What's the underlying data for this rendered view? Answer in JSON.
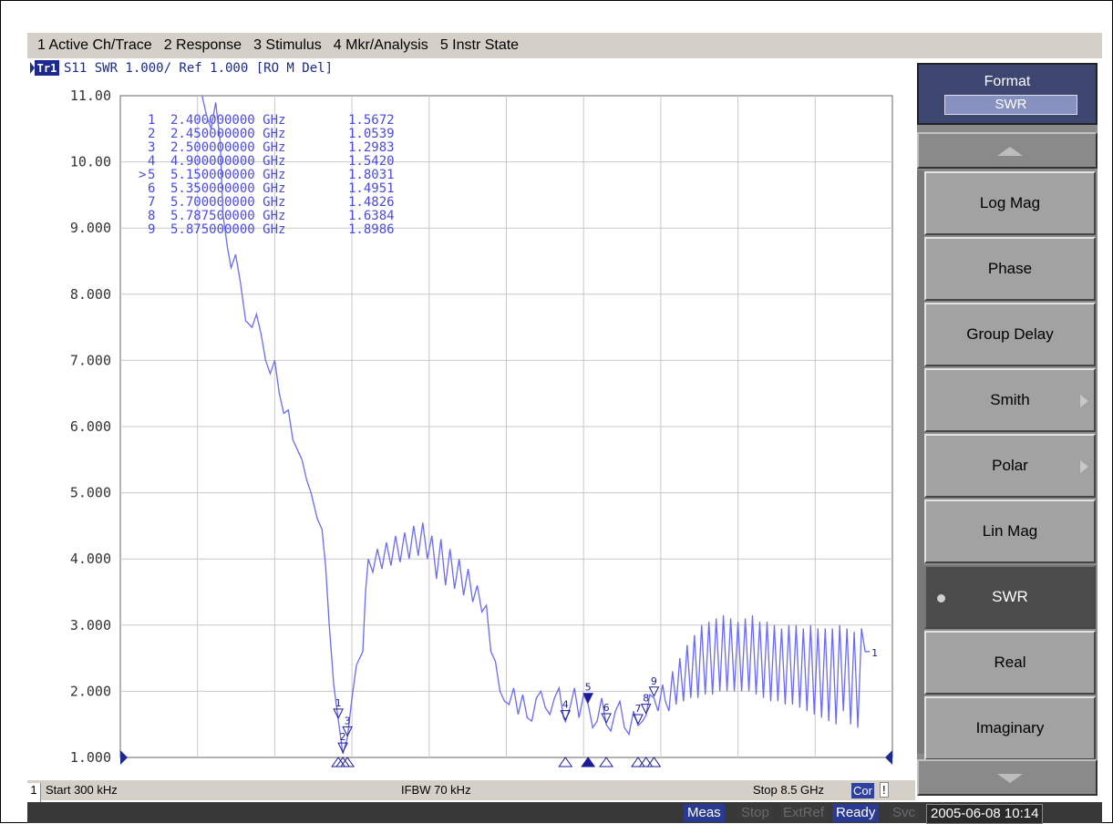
{
  "menu": [
    "1 Active Ch/Trace",
    "2 Response",
    "3 Stimulus",
    "4 Mkr/Analysis",
    "5 Instr State"
  ],
  "trace_header": {
    "badge": "Tr1",
    "text": "S11  SWR 1.000/ Ref 1.000  [RO M Del]"
  },
  "softkeys": {
    "title": "Format",
    "current": "SWR",
    "items": [
      {
        "label": "Log Mag",
        "arrow": false,
        "selected": false
      },
      {
        "label": "Phase",
        "arrow": false,
        "selected": false
      },
      {
        "label": "Group Delay",
        "arrow": false,
        "selected": false
      },
      {
        "label": "Smith",
        "arrow": true,
        "selected": false
      },
      {
        "label": "Polar",
        "arrow": true,
        "selected": false
      },
      {
        "label": "Lin Mag",
        "arrow": false,
        "selected": false
      },
      {
        "label": "SWR",
        "arrow": false,
        "selected": true
      },
      {
        "label": "Real",
        "arrow": false,
        "selected": false
      },
      {
        "label": "Imaginary",
        "arrow": false,
        "selected": false
      }
    ]
  },
  "status": {
    "channel": "1",
    "start": "Start 300 kHz",
    "ifbw": "IFBW 70 kHz",
    "stop": "Stop 8.5 GHz",
    "cor": "Cor",
    "excl": "!"
  },
  "bottom": {
    "items": [
      {
        "label": "Meas",
        "on": true
      },
      {
        "label": "Stop",
        "on": false
      },
      {
        "label": "ExtRef",
        "on": false
      },
      {
        "label": "Ready",
        "on": true
      },
      {
        "label": "Svc",
        "on": false
      }
    ],
    "datetime": "2005-06-08 10:14"
  },
  "colors": {
    "trace": "#6b6bf0",
    "marker": "#1c1c9a",
    "grid": "#c8c8c8",
    "text": "#4a4ae0"
  },
  "chart_data": {
    "type": "line",
    "title": "S11 SWR",
    "xlabel": "",
    "ylabel": "SWR",
    "xlim": [
      0.0003,
      8.5
    ],
    "ylim": [
      1.0,
      11.0
    ],
    "ytick_labels": [
      "11.00",
      "10.00",
      "9.000",
      "8.000",
      "7.000",
      "6.000",
      "5.000",
      "4.000",
      "3.000",
      "2.000",
      "1.000"
    ],
    "x_divisions": 10,
    "grid": true,
    "markers": [
      {
        "n": "1",
        "freq": "2.400000000 GHz",
        "value": "1.5672",
        "active": false
      },
      {
        "n": "2",
        "freq": "2.450000000 GHz",
        "value": "1.0539",
        "active": false
      },
      {
        "n": "3",
        "freq": "2.500000000 GHz",
        "value": "1.2983",
        "active": false
      },
      {
        "n": "4",
        "freq": "4.900000000 GHz",
        "value": "1.5420",
        "active": false
      },
      {
        "n": "5",
        "freq": "5.150000000 GHz",
        "value": "1.8031",
        "active": true
      },
      {
        "n": "6",
        "freq": "5.350000000 GHz",
        "value": "1.4951",
        "active": false
      },
      {
        "n": "7",
        "freq": "5.700000000 GHz",
        "value": "1.4826",
        "active": false
      },
      {
        "n": "8",
        "freq": "5.787500000 GHz",
        "value": "1.6384",
        "active": false
      },
      {
        "n": "9",
        "freq": "5.875000000 GHz",
        "value": "1.8986",
        "active": false
      }
    ],
    "marker_points": [
      {
        "n": "1",
        "x": 2.4,
        "y": 1.5672
      },
      {
        "n": "2",
        "x": 2.45,
        "y": 1.0539
      },
      {
        "n": "3",
        "x": 2.5,
        "y": 1.2983
      },
      {
        "n": "4",
        "x": 4.9,
        "y": 1.542
      },
      {
        "n": "5",
        "x": 5.15,
        "y": 1.8031
      },
      {
        "n": "6",
        "x": 5.35,
        "y": 1.4951
      },
      {
        "n": "7",
        "x": 5.7,
        "y": 1.4826
      },
      {
        "n": "8",
        "x": 5.7875,
        "y": 1.6384
      },
      {
        "n": "9",
        "x": 5.875,
        "y": 1.8986
      }
    ],
    "series": [
      {
        "points": [
          [
            0.9,
            11.0
          ],
          [
            0.95,
            10.7
          ],
          [
            1.0,
            10.5
          ],
          [
            1.05,
            10.9
          ],
          [
            1.1,
            10.3
          ],
          [
            1.13,
            9.2
          ],
          [
            1.18,
            8.7
          ],
          [
            1.22,
            8.4
          ],
          [
            1.27,
            8.6
          ],
          [
            1.32,
            8.2
          ],
          [
            1.38,
            7.6
          ],
          [
            1.45,
            7.5
          ],
          [
            1.5,
            7.7
          ],
          [
            1.55,
            7.4
          ],
          [
            1.6,
            7.0
          ],
          [
            1.65,
            6.8
          ],
          [
            1.7,
            7.0
          ],
          [
            1.75,
            6.5
          ],
          [
            1.8,
            6.2
          ],
          [
            1.85,
            6.25
          ],
          [
            1.9,
            5.8
          ],
          [
            2.0,
            5.5
          ],
          [
            2.05,
            5.2
          ],
          [
            2.1,
            5.0
          ],
          [
            2.17,
            4.6
          ],
          [
            2.22,
            4.45
          ],
          [
            2.26,
            3.9
          ],
          [
            2.3,
            3.0
          ],
          [
            2.35,
            2.1
          ],
          [
            2.4,
            1.5672
          ],
          [
            2.45,
            1.0539
          ],
          [
            2.5,
            1.2983
          ],
          [
            2.55,
            1.9
          ],
          [
            2.6,
            2.4
          ],
          [
            2.67,
            2.6
          ],
          [
            2.7,
            3.5
          ],
          [
            2.73,
            4.0
          ],
          [
            2.78,
            3.8
          ],
          [
            2.83,
            4.15
          ],
          [
            2.88,
            3.85
          ],
          [
            2.93,
            4.25
          ],
          [
            2.98,
            3.9
          ],
          [
            3.03,
            4.35
          ],
          [
            3.08,
            3.95
          ],
          [
            3.13,
            4.4
          ],
          [
            3.18,
            4.0
          ],
          [
            3.23,
            4.5
          ],
          [
            3.28,
            4.05
          ],
          [
            3.33,
            4.55
          ],
          [
            3.38,
            4.0
          ],
          [
            3.43,
            4.35
          ],
          [
            3.48,
            3.7
          ],
          [
            3.53,
            4.3
          ],
          [
            3.58,
            3.6
          ],
          [
            3.63,
            4.15
          ],
          [
            3.68,
            3.55
          ],
          [
            3.73,
            4.0
          ],
          [
            3.78,
            3.45
          ],
          [
            3.83,
            3.85
          ],
          [
            3.88,
            3.35
          ],
          [
            3.93,
            3.6
          ],
          [
            3.98,
            3.2
          ],
          [
            4.03,
            3.3
          ],
          [
            4.08,
            2.6
          ],
          [
            4.13,
            2.45
          ],
          [
            4.18,
            2.0
          ],
          [
            4.23,
            1.85
          ],
          [
            4.28,
            1.8
          ],
          [
            4.33,
            2.05
          ],
          [
            4.38,
            1.65
          ],
          [
            4.43,
            1.95
          ],
          [
            4.48,
            1.6
          ],
          [
            4.53,
            1.55
          ],
          [
            4.58,
            1.9
          ],
          [
            4.63,
            2.0
          ],
          [
            4.68,
            1.75
          ],
          [
            4.73,
            1.65
          ],
          [
            4.78,
            1.9
          ],
          [
            4.83,
            2.05
          ],
          [
            4.88,
            1.6
          ],
          [
            4.9,
            1.542
          ],
          [
            4.95,
            1.75
          ],
          [
            5.0,
            2.05
          ],
          [
            5.05,
            1.6
          ],
          [
            5.1,
            1.95
          ],
          [
            5.15,
            1.8031
          ],
          [
            5.2,
            1.45
          ],
          [
            5.25,
            1.55
          ],
          [
            5.3,
            1.9
          ],
          [
            5.35,
            1.4951
          ],
          [
            5.4,
            1.4
          ],
          [
            5.45,
            1.7
          ],
          [
            5.5,
            1.85
          ],
          [
            5.55,
            1.45
          ],
          [
            5.6,
            1.35
          ],
          [
            5.65,
            1.7
          ],
          [
            5.7,
            1.4826
          ],
          [
            5.75,
            1.55
          ],
          [
            5.7875,
            1.6384
          ],
          [
            5.83,
            1.95
          ],
          [
            5.875,
            1.8986
          ],
          [
            5.92,
            1.7
          ],
          [
            5.97,
            2.1
          ],
          [
            6.0,
            1.85
          ],
          [
            6.04,
            1.7
          ],
          [
            6.08,
            2.3
          ],
          [
            6.12,
            1.8
          ],
          [
            6.16,
            2.5
          ],
          [
            6.2,
            1.85
          ],
          [
            6.24,
            2.7
          ],
          [
            6.28,
            1.9
          ],
          [
            6.32,
            2.85
          ],
          [
            6.36,
            1.9
          ],
          [
            6.4,
            3.0
          ],
          [
            6.44,
            1.95
          ],
          [
            6.48,
            3.05
          ],
          [
            6.52,
            1.95
          ],
          [
            6.56,
            3.1
          ],
          [
            6.6,
            2.0
          ],
          [
            6.64,
            3.15
          ],
          [
            6.68,
            2.0
          ],
          [
            6.72,
            3.1
          ],
          [
            6.76,
            2.0
          ],
          [
            6.8,
            3.05
          ],
          [
            6.84,
            2.0
          ],
          [
            6.88,
            3.1
          ],
          [
            6.92,
            2.0
          ],
          [
            6.96,
            3.15
          ],
          [
            7.0,
            1.95
          ],
          [
            7.04,
            3.05
          ],
          [
            7.08,
            1.9
          ],
          [
            7.12,
            3.05
          ],
          [
            7.16,
            1.85
          ],
          [
            7.2,
            3.0
          ],
          [
            7.24,
            1.85
          ],
          [
            7.28,
            2.95
          ],
          [
            7.32,
            1.8
          ],
          [
            7.36,
            3.0
          ],
          [
            7.4,
            1.8
          ],
          [
            7.44,
            3.0
          ],
          [
            7.48,
            1.75
          ],
          [
            7.52,
            2.95
          ],
          [
            7.56,
            1.7
          ],
          [
            7.6,
            3.0
          ],
          [
            7.64,
            1.65
          ],
          [
            7.68,
            2.95
          ],
          [
            7.72,
            1.6
          ],
          [
            7.76,
            2.95
          ],
          [
            7.8,
            1.55
          ],
          [
            7.84,
            2.95
          ],
          [
            7.88,
            1.5
          ],
          [
            7.92,
            3.0
          ],
          [
            7.96,
            1.7
          ],
          [
            8.0,
            2.95
          ],
          [
            8.04,
            1.5
          ],
          [
            8.08,
            2.9
          ],
          [
            8.12,
            1.45
          ],
          [
            8.16,
            2.95
          ],
          [
            8.2,
            2.6
          ],
          [
            8.25,
            2.6
          ]
        ]
      }
    ]
  }
}
